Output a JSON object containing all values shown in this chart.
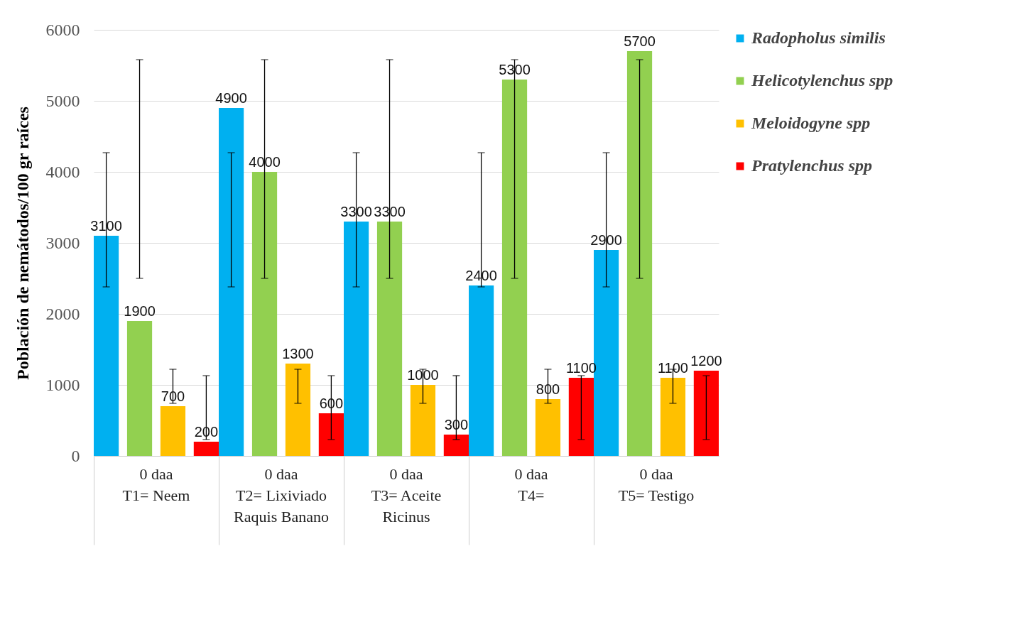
{
  "chart_data": {
    "type": "bar",
    "ylabel": "Población de nemátodos/100 gr raíces",
    "categories": [
      "0 daa\nT1= Neem",
      "0 daa\nT2= Lixiviado\nRaquis Banano",
      "0 daa\nT3= Aceite\nRicinus",
      "0 daa\nT4=",
      "0 daa\nT5= Testigo"
    ],
    "series": [
      {
        "name": "Radopholus similis",
        "color": "#00b0f0",
        "values": [
          3100,
          4900,
          3300,
          2400,
          2900
        ],
        "errors": [
          [
            2380,
            4270
          ],
          [
            2380,
            4270
          ],
          [
            2380,
            4270
          ],
          [
            2380,
            4270
          ],
          [
            2380,
            4270
          ]
        ]
      },
      {
        "name": "Helicotylenchus spp",
        "color": "#92d050",
        "values": [
          1900,
          4000,
          3300,
          5300,
          5700
        ],
        "errors": [
          [
            2500,
            5580
          ],
          [
            2500,
            5580
          ],
          [
            2500,
            5580
          ],
          [
            2500,
            5580
          ],
          [
            2500,
            5580
          ]
        ]
      },
      {
        "name": "Meloidogyne spp",
        "color": "#ffc000",
        "values": [
          700,
          1300,
          1000,
          800,
          1100
        ],
        "errors": [
          [
            740,
            1220
          ],
          [
            740,
            1220
          ],
          [
            740,
            1220
          ],
          [
            740,
            1220
          ],
          [
            740,
            1220
          ]
        ]
      },
      {
        "name": "Pratylenchus spp",
        "color": "#ff0000",
        "values": [
          200,
          600,
          300,
          1100,
          1200
        ],
        "errors": [
          [
            230,
            1130
          ],
          [
            230,
            1130
          ],
          [
            230,
            1130
          ],
          [
            230,
            1130
          ],
          [
            230,
            1130
          ]
        ]
      }
    ],
    "ylim": [
      0,
      6000
    ],
    "yticks": [
      0,
      {
        "value": 1000,
        "label": "1000"
      },
      {
        "value": 2000,
        "label": "2000"
      },
      {
        "value": 3000,
        "label": "3000"
      },
      {
        "value": 4000,
        "label": "4000"
      },
      {
        "value": 5000,
        "label": "5000"
      },
      {
        "value": 6000,
        "label": "6000"
      }
    ],
    "grid": "y",
    "legend": "right",
    "data_labels": true
  }
}
